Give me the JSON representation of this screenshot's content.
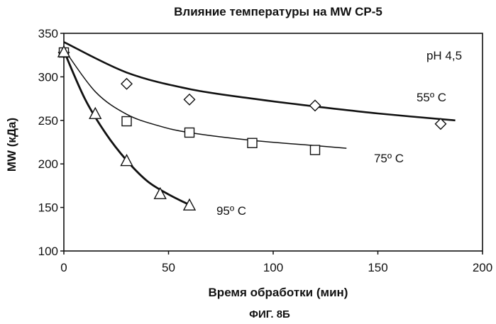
{
  "figure_caption": "ФИГ. 8Б",
  "chart_data": {
    "type": "scatter",
    "title": "Влияние температуры на MW CP-5",
    "xlabel": "Время обработки (мин)",
    "ylabel": "MW (кДа)",
    "xlim": [
      0,
      200
    ],
    "ylim": [
      100,
      350
    ],
    "xticks": [
      0,
      50,
      100,
      150,
      200
    ],
    "yticks": [
      100,
      150,
      200,
      250,
      300,
      350
    ],
    "xtick_labels": [
      "0",
      "50",
      "100",
      "150",
      "200"
    ],
    "ytick_labels": [
      "100",
      "150",
      "200",
      "250",
      "300",
      "350"
    ],
    "grid": false,
    "annotation": "pH 4,5",
    "series": [
      {
        "name": "55º C",
        "marker": "diamond",
        "points": [
          [
            0,
            328
          ],
          [
            30,
            292
          ],
          [
            60,
            274
          ],
          [
            120,
            267
          ],
          [
            180,
            246
          ]
        ],
        "fit": [
          [
            0,
            340
          ],
          [
            30,
            305
          ],
          [
            60,
            286
          ],
          [
            90,
            275
          ],
          [
            120,
            266
          ],
          [
            150,
            258
          ],
          [
            187,
            250
          ]
        ]
      },
      {
        "name": "75º C",
        "marker": "square",
        "points": [
          [
            0,
            328
          ],
          [
            30,
            249
          ],
          [
            60,
            236
          ],
          [
            90,
            224
          ],
          [
            120,
            216
          ]
        ],
        "fit": [
          [
            0,
            332
          ],
          [
            15,
            283
          ],
          [
            30,
            257
          ],
          [
            45,
            244
          ],
          [
            60,
            236
          ],
          [
            90,
            227
          ],
          [
            120,
            221
          ],
          [
            135,
            218
          ]
        ]
      },
      {
        "name": "95º C",
        "marker": "triangle",
        "points": [
          [
            0,
            328
          ],
          [
            15,
            257
          ],
          [
            30,
            203
          ],
          [
            46,
            165
          ],
          [
            60,
            152
          ]
        ],
        "fit": [
          [
            0,
            330
          ],
          [
            10,
            275
          ],
          [
            20,
            235
          ],
          [
            30,
            204
          ],
          [
            40,
            180
          ],
          [
            50,
            165
          ],
          [
            60,
            153
          ]
        ]
      }
    ]
  }
}
